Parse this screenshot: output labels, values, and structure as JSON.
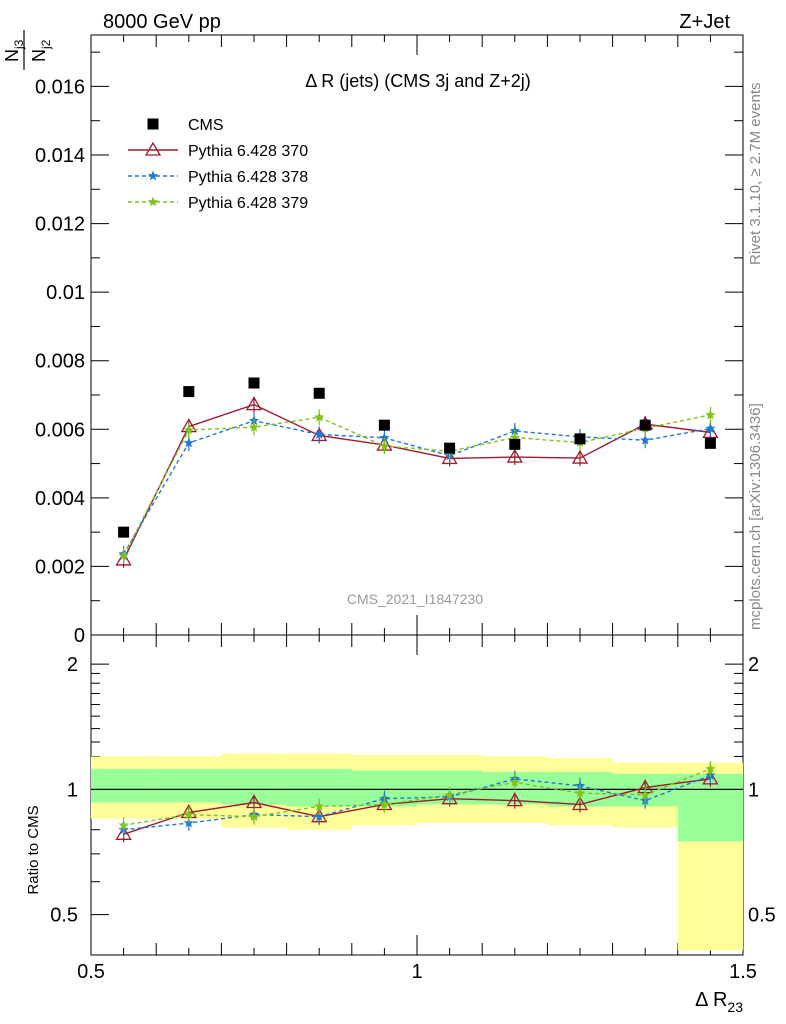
{
  "header": {
    "left": "8000 GeV pp",
    "right": "Z+Jet"
  },
  "side_texts": {
    "rivet": "Rivet 3.1.10, ≥ 2.7M events",
    "mcplots": "mcplots.cern.ch [arXiv:1306.3436]"
  },
  "watermark": "CMS_2021_I1847230",
  "main_plot": {
    "title": "Δ R (jets) (CMS 3j and Z+2j)",
    "ylabel": {
      "num": "N",
      "num_sub": "j3",
      "den": "N",
      "den_sub": "j2"
    },
    "yticks": [
      "0",
      "0.002",
      "0.004",
      "0.006",
      "0.008",
      "0.01",
      "0.012",
      "0.014",
      "0.016"
    ]
  },
  "ratio_plot": {
    "ylabel": "Ratio to CMS",
    "yticks": [
      "0.5",
      "1",
      "2"
    ]
  },
  "xaxis": {
    "label": "Δ R",
    "label_sub": "23",
    "ticks": [
      "0.5",
      "1",
      "1.5"
    ]
  },
  "legend": [
    {
      "label": "CMS",
      "color": "#000000",
      "marker": "square",
      "dash": "none"
    },
    {
      "label": "Pythia 6.428 370",
      "color": "#9b1b30",
      "marker": "triangle-open",
      "dash": "solid"
    },
    {
      "label": "Pythia 6.428 378",
      "color": "#1f78d4",
      "marker": "star",
      "dash": "dashed"
    },
    {
      "label": "Pythia 6.428 379",
      "color": "#7fc31c",
      "marker": "star",
      "dash": "dashed"
    }
  ],
  "chart_data": {
    "type": "line",
    "x": [
      0.55,
      0.65,
      0.75,
      0.85,
      0.95,
      1.05,
      1.15,
      1.25,
      1.35,
      1.45
    ],
    "bin_edges": [
      0.5,
      0.6,
      0.7,
      0.8,
      0.9,
      1.0,
      1.1,
      1.2,
      1.3,
      1.4,
      1.5
    ],
    "xlim": [
      0.5,
      1.5
    ],
    "ylim": [
      0,
      0.0175
    ],
    "ratio_ylim_log": [
      0.4,
      2.35
    ],
    "series": [
      {
        "name": "CMS",
        "values": [
          0.003,
          0.0071,
          0.00735,
          0.00705,
          0.00612,
          0.00545,
          0.00556,
          0.00572,
          0.00612,
          0.00559
        ]
      },
      {
        "name": "Pythia 6.428 370",
        "values": [
          0.00219,
          0.00608,
          0.00672,
          0.00582,
          0.00554,
          0.00515,
          0.00519,
          0.00516,
          0.00615,
          0.00591
        ],
        "ratio": [
          0.78,
          0.88,
          0.93,
          0.86,
          0.92,
          0.95,
          0.94,
          0.92,
          1.01,
          1.06
        ]
      },
      {
        "name": "Pythia 6.428 378",
        "values": [
          0.00236,
          0.0056,
          0.00625,
          0.00585,
          0.00575,
          0.00523,
          0.00595,
          0.00578,
          0.00568,
          0.00602
        ],
        "ratio": [
          0.8,
          0.83,
          0.87,
          0.86,
          0.95,
          0.96,
          1.06,
          1.02,
          0.94,
          1.08
        ]
      },
      {
        "name": "Pythia 6.428 379",
        "values": [
          0.00231,
          0.00598,
          0.00606,
          0.00635,
          0.00551,
          0.00536,
          0.00576,
          0.00561,
          0.00603,
          0.00642
        ],
        "ratio": [
          0.82,
          0.87,
          0.86,
          0.91,
          0.92,
          0.97,
          1.04,
          0.98,
          0.97,
          1.12
        ]
      }
    ],
    "bands": {
      "yellow": [
        [
          0.85,
          1.2
        ],
        [
          0.85,
          1.2
        ],
        [
          0.81,
          1.22
        ],
        [
          0.8,
          1.22
        ],
        [
          0.82,
          1.21
        ],
        [
          0.83,
          1.21
        ],
        [
          0.83,
          1.2
        ],
        [
          0.82,
          1.19
        ],
        [
          0.81,
          1.16
        ],
        [
          0.41,
          1.16
        ]
      ],
      "green": [
        [
          0.93,
          1.12
        ],
        [
          0.93,
          1.12
        ],
        [
          0.92,
          1.12
        ],
        [
          0.91,
          1.12
        ],
        [
          0.91,
          1.11
        ],
        [
          0.92,
          1.11
        ],
        [
          0.92,
          1.1
        ],
        [
          0.91,
          1.1
        ],
        [
          0.91,
          1.09
        ],
        [
          0.75,
          1.09
        ]
      ]
    }
  }
}
